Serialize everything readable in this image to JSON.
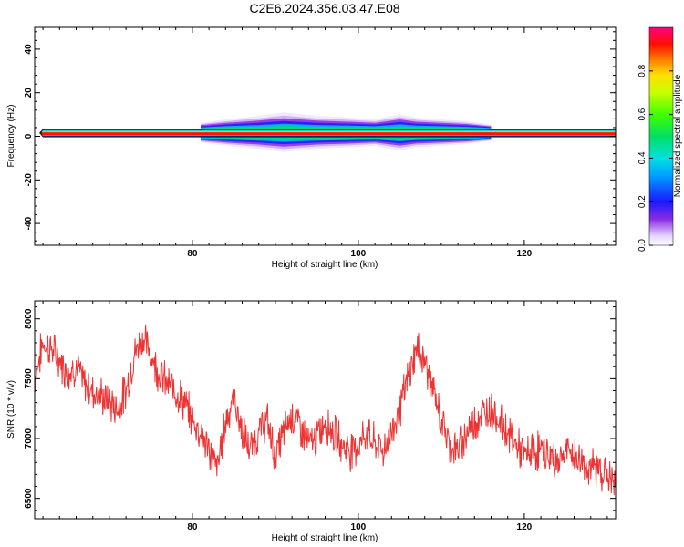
{
  "figure_title": "C2E6.2024.356.03.47.E08",
  "chart_data": [
    {
      "type": "heatmap",
      "xlabel": "Height of straight line (km)",
      "ylabel": "Frequency (Hz)",
      "xlim": [
        61,
        131
      ],
      "ylim": [
        -50,
        50
      ],
      "x_ticks": [
        80,
        100,
        120
      ],
      "y_ticks": [
        -40,
        -20,
        0,
        20,
        40
      ],
      "colorbar": {
        "label": "Normalized spectral amplitude",
        "range": [
          0.0,
          1.0
        ],
        "ticks": [
          "0.0",
          "0.2",
          "0.4",
          "0.6",
          "0.8"
        ]
      },
      "band": {
        "center_freq_hz": 1.5,
        "half_width_hz": 1.5,
        "x_start": 62,
        "x_end": 131,
        "max_spread_hz": [
          {
            "x": 81,
            "hz": 2
          },
          {
            "x": 84,
            "hz": 3
          },
          {
            "x": 88,
            "hz": 4
          },
          {
            "x": 91,
            "hz": 5
          },
          {
            "x": 95,
            "hz": 4
          },
          {
            "x": 99,
            "hz": 3.5
          },
          {
            "x": 102,
            "hz": 3
          },
          {
            "x": 105,
            "hz": 4.5
          },
          {
            "x": 107,
            "hz": 3.5
          },
          {
            "x": 110,
            "hz": 3
          },
          {
            "x": 113,
            "hz": 2.5
          },
          {
            "x": 116,
            "hz": 1.5
          }
        ]
      },
      "grid": false,
      "legend": "colorbar-right"
    },
    {
      "type": "line",
      "xlabel": "Height of straight line (km)",
      "ylabel": "SNR (10 * v/v)",
      "xlim": [
        61,
        131
      ],
      "ylim": [
        6330,
        8150
      ],
      "x_ticks": [
        80,
        100,
        120
      ],
      "y_ticks": [
        6500,
        7000,
        7500,
        8000
      ],
      "color": "#ee3333",
      "series": [
        {
          "x": [
            61,
            62,
            63,
            64,
            65,
            66,
            67,
            68,
            69,
            70,
            71,
            72,
            73,
            74,
            75,
            76,
            77,
            78,
            79,
            80,
            81,
            82,
            83,
            84,
            85,
            86,
            87,
            88,
            89,
            90,
            91,
            92,
            93,
            94,
            95,
            96,
            97,
            98,
            99,
            100,
            101,
            102,
            103,
            104,
            105,
            106,
            107,
            108,
            109,
            110,
            111,
            112,
            113,
            114,
            115,
            116,
            117,
            118,
            119,
            120,
            121,
            122,
            123,
            124,
            125,
            126,
            127,
            128,
            129,
            130,
            131
          ],
          "y": [
            7500,
            7800,
            7750,
            7650,
            7550,
            7600,
            7450,
            7400,
            7350,
            7300,
            7250,
            7400,
            7700,
            7850,
            7700,
            7550,
            7450,
            7400,
            7300,
            7150,
            7050,
            6900,
            6750,
            7150,
            7350,
            7050,
            6900,
            7050,
            7150,
            6850,
            7050,
            7200,
            7100,
            6950,
            7000,
            7150,
            7050,
            6950,
            6900,
            6950,
            7050,
            6950,
            6900,
            7050,
            7250,
            7500,
            7750,
            7650,
            7400,
            7150,
            6950,
            6900,
            7050,
            7150,
            7200,
            7250,
            7150,
            7050,
            6950,
            6850,
            6900,
            6900,
            6850,
            6800,
            6900,
            6850,
            6800,
            6750,
            6750,
            6700,
            6600
          ]
        }
      ],
      "grid": false
    }
  ]
}
